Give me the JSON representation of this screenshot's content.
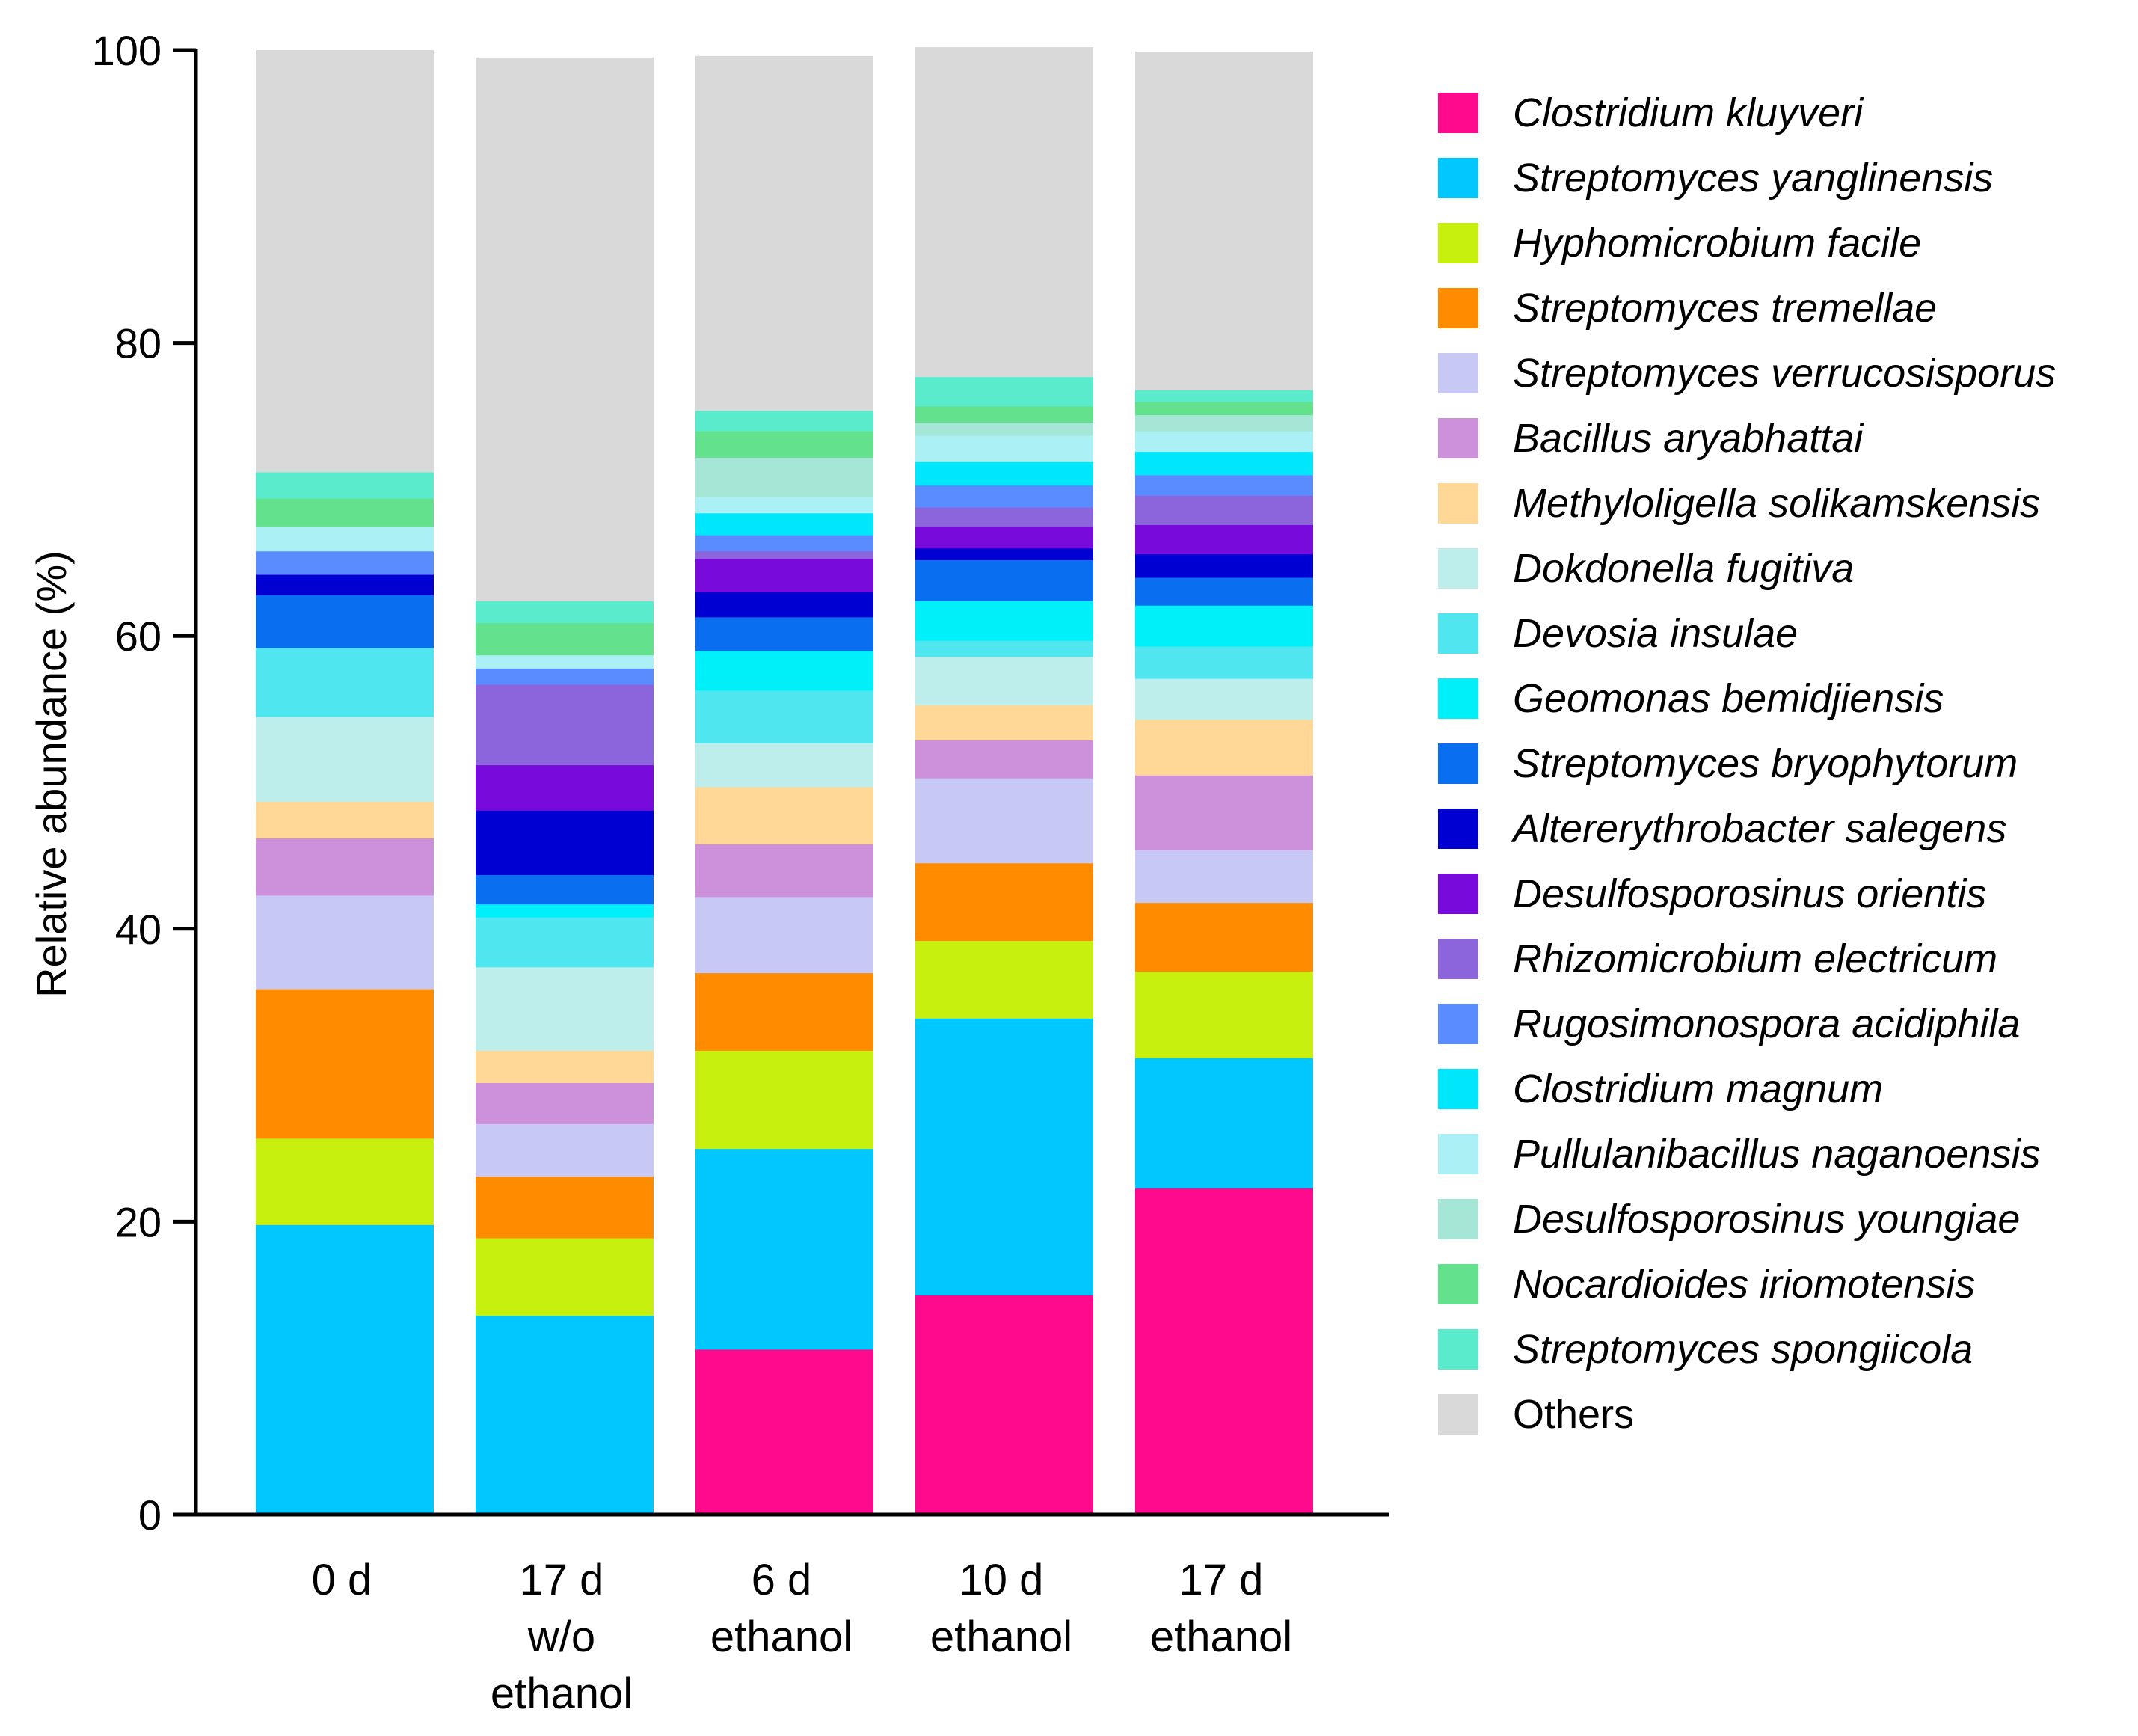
{
  "chart_data": {
    "type": "bar",
    "stacked": true,
    "title": "",
    "xlabel": "",
    "ylabel": "Relative abundance (%)",
    "ylim": [
      0,
      100
    ],
    "yticks": [
      0,
      20,
      40,
      60,
      80,
      100
    ],
    "grid": false,
    "legend_position": "right",
    "categories": [
      [
        "0 d"
      ],
      [
        "17 d",
        "w/o",
        "ethanol"
      ],
      [
        "6 d",
        "ethanol"
      ],
      [
        "10 d",
        "ethanol"
      ],
      [
        "17 d",
        "ethanol"
      ]
    ],
    "series": [
      {
        "name": "Clostridium kluyveri",
        "color": "#FF0A8C",
        "italic": true,
        "values": [
          0,
          0,
          11.3,
          15.0,
          22.3
        ]
      },
      {
        "name": "Streptomyces yanglinensis",
        "color": "#00C8FF",
        "italic": true,
        "values": [
          19.8,
          13.6,
          13.7,
          18.9,
          8.9
        ]
      },
      {
        "name": "Hyphomicrobium facile",
        "color": "#C8F00F",
        "italic": true,
        "values": [
          5.9,
          5.3,
          6.7,
          5.3,
          5.9
        ]
      },
      {
        "name": "Streptomyces tremellae",
        "color": "#FF8C00",
        "italic": true,
        "values": [
          10.2,
          4.2,
          5.3,
          5.3,
          4.7
        ]
      },
      {
        "name": "Streptomyces verrucosisporus",
        "color": "#C8C8F5",
        "italic": true,
        "values": [
          6.4,
          3.6,
          5.2,
          5.8,
          3.6
        ]
      },
      {
        "name": "Bacillus aryabhattai",
        "color": "#CD91DC",
        "italic": true,
        "values": [
          3.9,
          2.8,
          3.6,
          2.6,
          5.1
        ]
      },
      {
        "name": "Methyloligella solikamskensis",
        "color": "#FFD796",
        "italic": true,
        "values": [
          2.5,
          2.2,
          3.9,
          2.4,
          3.8
        ]
      },
      {
        "name": "Dokdonella fugitiva",
        "color": "#BEEEEB",
        "italic": true,
        "values": [
          5.8,
          5.7,
          3.0,
          3.3,
          2.8
        ]
      },
      {
        "name": "Devosia insulae",
        "color": "#50E6F0",
        "italic": true,
        "values": [
          4.7,
          3.4,
          3.6,
          1.1,
          2.2
        ]
      },
      {
        "name": "Geomonas bemidjiensis",
        "color": "#00F0FA",
        "italic": true,
        "values": [
          0,
          0.9,
          2.7,
          2.7,
          2.8
        ]
      },
      {
        "name": "Streptomyces bryophytorum",
        "color": "#0A6EF0",
        "italic": true,
        "values": [
          3.6,
          2.0,
          2.3,
          2.8,
          1.9
        ]
      },
      {
        "name": "Altererythrobacter salegens",
        "color": "#0000D2",
        "italic": true,
        "values": [
          1.4,
          4.4,
          1.7,
          0.8,
          1.6
        ]
      },
      {
        "name": "Desulfosporosinus orientis",
        "color": "#780ADC",
        "italic": true,
        "values": [
          0,
          3.1,
          2.3,
          1.5,
          2.0
        ]
      },
      {
        "name": "Rhizomicrobium electricum",
        "color": "#8C64DC",
        "italic": true,
        "values": [
          0,
          5.5,
          0.5,
          1.3,
          2.0
        ]
      },
      {
        "name": "Rugosimonospora acidiphila",
        "color": "#5A8CFF",
        "italic": true,
        "values": [
          1.6,
          1.1,
          1.1,
          1.5,
          1.4
        ]
      },
      {
        "name": "Clostridium magnum",
        "color": "#00E6FA",
        "italic": true,
        "values": [
          0,
          0,
          1.5,
          1.6,
          1.6
        ]
      },
      {
        "name": "Pullulanibacillus naganoensis",
        "color": "#AAF0F5",
        "italic": true,
        "values": [
          1.7,
          0.9,
          1.1,
          1.8,
          1.4
        ]
      },
      {
        "name": "Desulfosporosinus youngiae",
        "color": "#A5E6D7",
        "italic": true,
        "values": [
          0,
          0,
          2.7,
          0.9,
          1.1
        ]
      },
      {
        "name": "Nocardioides iriomotensis",
        "color": "#64E18C",
        "italic": true,
        "values": [
          1.9,
          2.2,
          1.8,
          1.1,
          0.9
        ]
      },
      {
        "name": "Streptomyces spongiicola",
        "color": "#5AEBCD",
        "italic": true,
        "values": [
          1.8,
          1.5,
          1.4,
          2.0,
          0.8
        ]
      },
      {
        "name": "Others",
        "color": "#D9D9D9",
        "italic": false,
        "values": [
          28.8,
          37.1,
          24.2,
          22.5,
          23.1
        ]
      }
    ]
  }
}
